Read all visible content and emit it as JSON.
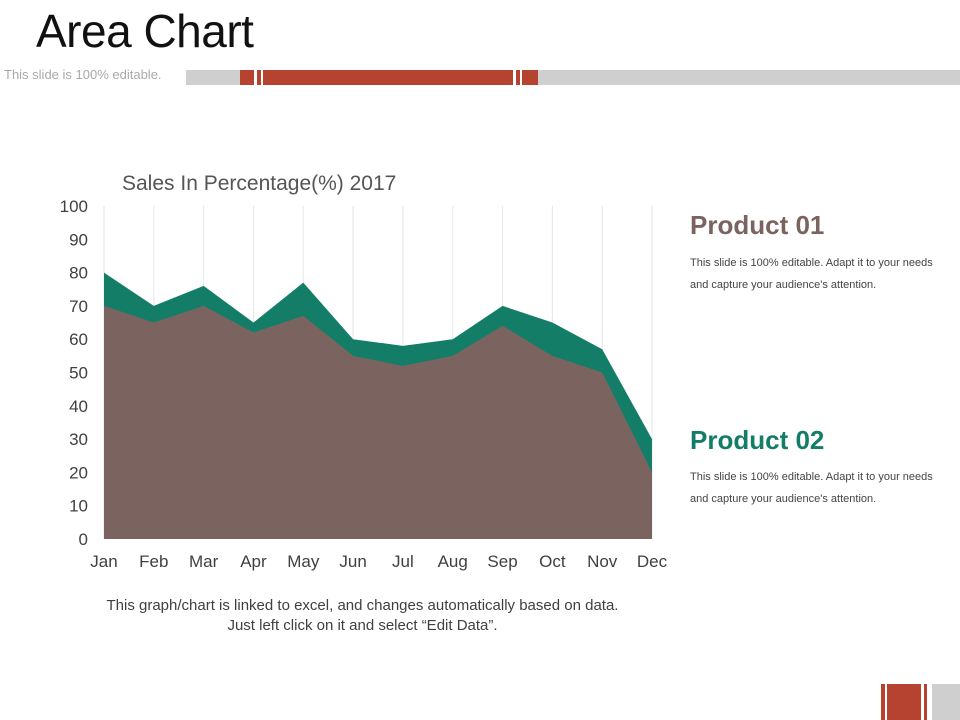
{
  "slide": {
    "title": "Area Chart",
    "subtitle": "This slide is 100% editable.",
    "note": "This graph/chart is linked to excel, and changes automatically based on data. Just left click on it and select “Edit Data”."
  },
  "products": [
    {
      "title": "Product 01",
      "description": "This slide is 100% editable. Adapt it to your needs and capture your audience's attention.",
      "color": "#7b6460"
    },
    {
      "title": "Product 02",
      "description": "This slide is 100% editable. Adapt it to your needs and capture your audience's attention.",
      "color": "#147d68"
    }
  ],
  "chart_data": {
    "type": "area",
    "title": "Sales In Percentage(%) 2017",
    "xlabel": "",
    "ylabel": "",
    "categories": [
      "Jan",
      "Feb",
      "Mar",
      "Apr",
      "May",
      "Jun",
      "Jul",
      "Aug",
      "Sep",
      "Oct",
      "Nov",
      "Dec"
    ],
    "ylim": [
      0,
      100
    ],
    "yticks": [
      0,
      10,
      20,
      30,
      40,
      50,
      60,
      70,
      80,
      90,
      100
    ],
    "grid": "vertical",
    "series": [
      {
        "name": "Product 02",
        "color": "#147d68",
        "values": [
          80,
          70,
          76,
          65,
          77,
          60,
          58,
          60,
          70,
          65,
          57,
          30
        ]
      },
      {
        "name": "Product 01",
        "color": "#7b6460",
        "values": [
          70,
          65,
          70,
          62,
          67,
          55,
          52,
          55,
          64,
          55,
          50,
          20
        ]
      }
    ]
  }
}
